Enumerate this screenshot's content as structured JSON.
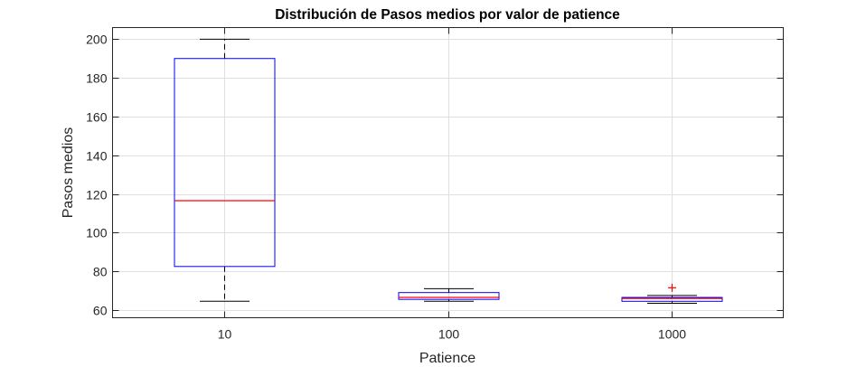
{
  "chart_data": {
    "type": "box",
    "title": "Distribución de Pasos medios por valor de patience",
    "xlabel": "Patience",
    "ylabel": "Pasos medios",
    "categories": [
      "10",
      "100",
      "1000"
    ],
    "ylim": [
      56,
      206
    ],
    "yticks": [
      60,
      80,
      100,
      120,
      140,
      160,
      180,
      200
    ],
    "grid": true,
    "boxes": [
      {
        "category": "10",
        "whisker_low": 64.5,
        "q1": 82.5,
        "median": 116.5,
        "q3": 190,
        "whisker_high": 200,
        "outliers": []
      },
      {
        "category": "100",
        "whisker_low": 64.5,
        "q1": 65.5,
        "median": 66.5,
        "q3": 69,
        "whisker_high": 71,
        "outliers": []
      },
      {
        "category": "1000",
        "whisker_low": 63.5,
        "q1": 64.5,
        "median": 66,
        "q3": 66.5,
        "whisker_high": 67.5,
        "outliers": [
          71.5
        ]
      }
    ],
    "colors": {
      "box": "#0000ff",
      "median": "#ff0000",
      "whisker": "#000000",
      "outlier": "#ff0000",
      "grid": "#dfdfdf",
      "axis": "#262626"
    }
  }
}
